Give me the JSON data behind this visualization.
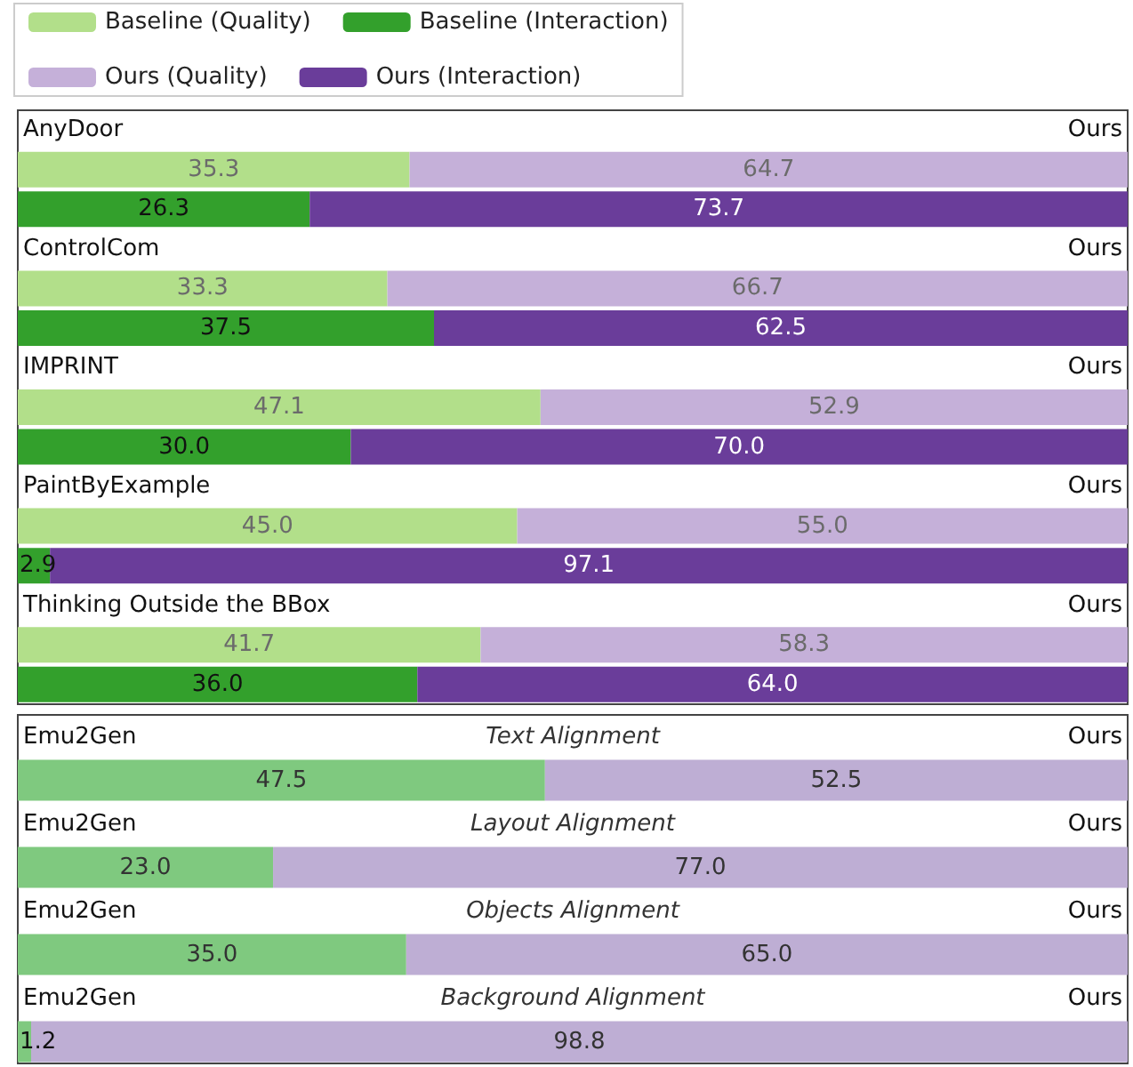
{
  "chart_data": [
    {
      "type": "bar",
      "orientation": "horizontal",
      "stacked": true,
      "legend": "top left",
      "tick_labels": "y",
      "grid": false,
      "xlim": [
        0,
        100
      ],
      "categories": [
        "AnyDoor",
        null,
        null,
        "ControlCom",
        null,
        null,
        "IMPRINT",
        null,
        null,
        "PaintByExample",
        null,
        null,
        "Thinking Outside the BBox",
        null,
        null
      ],
      "y2_categories": [
        "Ours",
        null,
        null,
        "Ours",
        null,
        null,
        "Ours",
        null,
        null,
        "Ours",
        null,
        null,
        "Ours",
        null,
        null
      ],
      "series": [
        {
          "name": "Baseline (Quality)",
          "color": "#b2df8a",
          "values": [
            null,
            35.3,
            null,
            null,
            33.3,
            null,
            null,
            47.1,
            null,
            null,
            45.0,
            null,
            null,
            41.7,
            null
          ],
          "value_labels": [
            null,
            "35.3",
            null,
            null,
            "33.3",
            null,
            null,
            "47.1",
            null,
            null,
            "45.0",
            null,
            null,
            "41.7",
            null
          ]
        },
        {
          "name": "Baseline (Interaction)",
          "color": "#33a02c",
          "values": [
            null,
            null,
            26.3,
            null,
            null,
            37.5,
            null,
            null,
            30.0,
            null,
            null,
            2.9,
            null,
            null,
            36.0
          ],
          "value_labels": [
            null,
            null,
            "26.3",
            null,
            null,
            "37.5",
            null,
            null,
            "30.0",
            null,
            null,
            "2.9",
            null,
            null,
            "36.0"
          ]
        },
        {
          "name": "Ours (Quality)",
          "color": "#c5b0d9",
          "values": [
            null,
            64.7,
            null,
            null,
            66.7,
            null,
            null,
            52.9,
            null,
            null,
            55.0,
            null,
            null,
            58.3,
            null
          ],
          "value_labels": [
            null,
            "64.7",
            null,
            null,
            "66.7",
            null,
            null,
            "52.9",
            null,
            null,
            "55.0",
            null,
            null,
            "58.3",
            null
          ]
        },
        {
          "name": "Ours (Interaction)",
          "color": "#6a3d9a",
          "values": [
            null,
            null,
            73.7,
            null,
            null,
            62.5,
            null,
            null,
            70.0,
            null,
            null,
            97.1,
            null,
            null,
            64.0
          ],
          "value_labels": [
            null,
            null,
            "73.7",
            null,
            null,
            "62.5",
            null,
            null,
            "70.0",
            null,
            null,
            "97.1",
            null,
            null,
            "64.0"
          ]
        }
      ]
    },
    {
      "type": "bar",
      "orientation": "horizontal",
      "stacked": true,
      "tick_labels": "y",
      "grid": false,
      "xlim": [
        0,
        100
      ],
      "categories": [
        "Emu2Gen",
        null,
        "Emu2Gen",
        null,
        "Emu2Gen",
        null,
        "Emu2Gen",
        null
      ],
      "y2_categories": [
        "Ours",
        null,
        "Ours",
        null,
        "Ours",
        null,
        "Ours",
        null
      ],
      "series": [
        {
          "color": "#7fc97f",
          "values": [
            null,
            47.5,
            null,
            23.0,
            null,
            35.0,
            null,
            1.2
          ],
          "value_labels": [
            null,
            "47.5",
            null,
            "23.0",
            null,
            "35.0",
            null,
            "1.2"
          ]
        },
        {
          "color": "#beaed4",
          "values": [
            null,
            52.5,
            null,
            77.0,
            null,
            65.0,
            null,
            98.8
          ],
          "value_labels": [
            null,
            "52.5",
            null,
            "77.0",
            null,
            "65.0",
            null,
            "98.8"
          ]
        }
      ],
      "annotations": [
        "Text Alignment",
        "Layout Alignment",
        "Objects Alignment",
        "Background Alignment"
      ]
    }
  ]
}
